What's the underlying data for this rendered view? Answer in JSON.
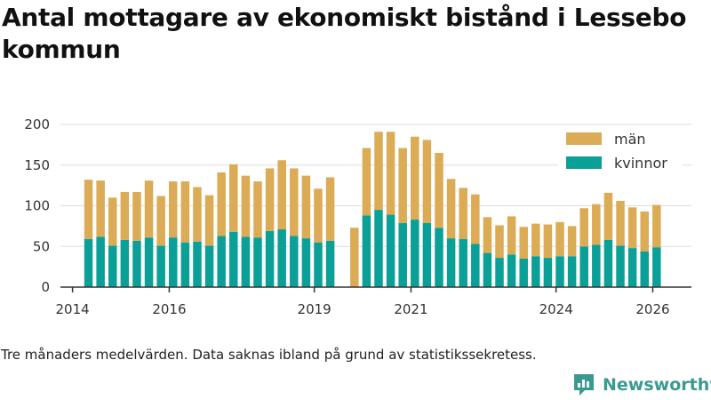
{
  "title": "Antal mottagare av ekonomiskt bistånd i Lessebo kommun",
  "caption": "Tre månaders medelvärden. Data saknas ibland på grund av statistikssekretess.",
  "brand": {
    "name": "Newsworthy",
    "icon": "newsworthy-logo-icon",
    "color": "#3a9a90"
  },
  "colors": {
    "kvinnor": "#0aa098",
    "man": "#dcab55",
    "axis": "#333333",
    "grid": "#dddddd"
  },
  "chart_data": {
    "type": "bar",
    "stacked": true,
    "title": "Antal mottagare av ekonomiskt bistånd i Lessebo kommun",
    "xlabel": "",
    "ylabel": "",
    "ylim": [
      0,
      200
    ],
    "xlim": [
      2013.75,
      2026.8
    ],
    "yticks": [
      0,
      50,
      100,
      150,
      200
    ],
    "xticks": [
      "2014",
      "2016",
      "2019",
      "2021",
      "2024",
      "2026"
    ],
    "xtick_values": [
      2014.0,
      2016.0,
      2019.0,
      2021.0,
      2024.0,
      2026.0
    ],
    "legend": [
      {
        "key": "man",
        "label": "män",
        "color": "#dcab55"
      },
      {
        "key": "kvinnor",
        "label": "kvinnor",
        "color": "#0aa098"
      }
    ],
    "legend_position": "top-right",
    "grid": true,
    "x": [
      2014.33,
      2014.58,
      2014.83,
      2015.08,
      2015.33,
      2015.58,
      2015.83,
      2016.08,
      2016.33,
      2016.58,
      2016.83,
      2017.08,
      2017.33,
      2017.58,
      2017.83,
      2018.08,
      2018.33,
      2018.58,
      2018.83,
      2019.08,
      2019.33,
      2019.83,
      2020.08,
      2020.33,
      2020.58,
      2020.83,
      2021.08,
      2021.33,
      2021.58,
      2021.83,
      2022.08,
      2022.33,
      2022.58,
      2022.83,
      2023.08,
      2023.33,
      2023.58,
      2023.83,
      2024.08,
      2024.33,
      2024.58,
      2024.83,
      2025.08,
      2025.33,
      2025.58,
      2025.83,
      2026.08
    ],
    "series": [
      {
        "name": "kvinnor",
        "values": [
          59,
          62,
          51,
          58,
          57,
          61,
          51,
          61,
          55,
          56,
          51,
          63,
          68,
          62,
          61,
          69,
          71,
          63,
          60,
          55,
          57,
          null,
          88,
          95,
          89,
          79,
          83,
          79,
          73,
          60,
          59,
          53,
          42,
          36,
          40,
          35,
          38,
          36,
          38,
          38,
          50,
          52,
          58,
          51,
          48,
          44,
          49
        ]
      },
      {
        "name": "män",
        "values": [
          73,
          69,
          59,
          59,
          60,
          70,
          61,
          69,
          75,
          67,
          62,
          78,
          83,
          75,
          69,
          77,
          85,
          83,
          77,
          66,
          78,
          73,
          83,
          96,
          102,
          92,
          102,
          102,
          92,
          73,
          63,
          61,
          44,
          40,
          47,
          39,
          40,
          41,
          42,
          37,
          47,
          50,
          58,
          55,
          50,
          49,
          52
        ]
      }
    ]
  }
}
